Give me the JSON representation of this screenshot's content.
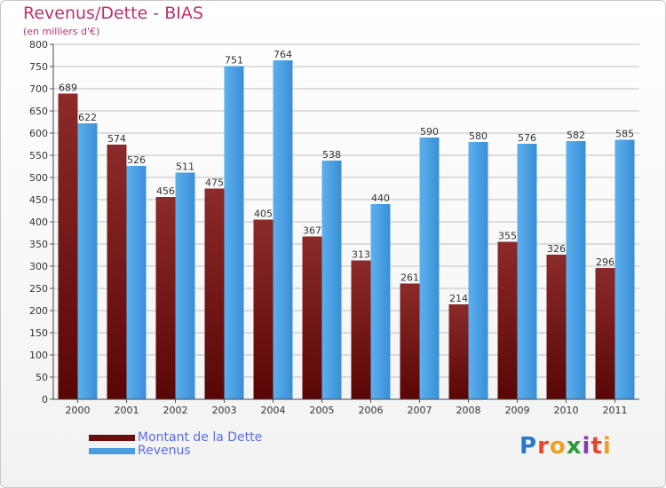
{
  "title": "Revenus/Dette - BIAS",
  "subtitle": "(en milliers d'€)",
  "logo": {
    "text": "Proxiti",
    "letters": [
      {
        "ch": "P",
        "color": "#2a78c8"
      },
      {
        "ch": "r",
        "color": "#e8462a"
      },
      {
        "ch": "o",
        "color": "#f0a020"
      },
      {
        "ch": "x",
        "color": "#2a9a3a"
      },
      {
        "ch": "i",
        "color": "#8a3ab0"
      },
      {
        "ch": "t",
        "color": "#e8462a"
      },
      {
        "ch": "i",
        "color": "#f0a020"
      }
    ]
  },
  "colors": {
    "dette": "#7a1616",
    "revenus": "#4a9ee0",
    "grid": "#bfbfbf"
  },
  "chart_data": {
    "type": "bar",
    "categories": [
      "2000",
      "2001",
      "2002",
      "2003",
      "2004",
      "2005",
      "2006",
      "2007",
      "2008",
      "2009",
      "2010",
      "2011"
    ],
    "series": [
      {
        "name": "Montant de la Dette",
        "values": [
          689,
          574,
          456,
          475,
          405,
          367,
          313,
          261,
          214,
          355,
          326,
          296
        ]
      },
      {
        "name": "Revenus",
        "values": [
          622,
          526,
          511,
          751,
          764,
          538,
          440,
          590,
          580,
          576,
          582,
          585
        ]
      }
    ],
    "ylim": [
      0,
      800
    ],
    "yticks": [
      0,
      50,
      100,
      150,
      200,
      250,
      300,
      350,
      400,
      450,
      500,
      550,
      600,
      650,
      700,
      750,
      800
    ],
    "grid": true,
    "legend_placement": "bottom-left"
  }
}
